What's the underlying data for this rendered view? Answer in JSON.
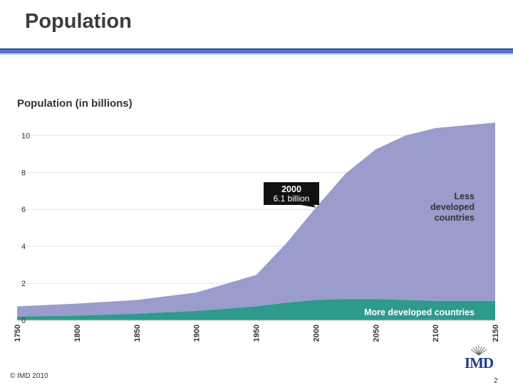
{
  "slide": {
    "title": "Population",
    "footer": "© IMD 2010",
    "page_number": "2",
    "logo_text": "IMD"
  },
  "colors": {
    "less_developed": "#9a9ccc",
    "more_developed": "#2e9a8c",
    "title_rule": "#2f4ea0"
  },
  "chart_data": {
    "type": "area",
    "title": "Population (in billions)",
    "xlabel": "",
    "ylabel": "",
    "ylim": [
      0,
      10.4
    ],
    "xlim": [
      1750,
      2150
    ],
    "yticks": [
      "0",
      "2",
      "4",
      "6",
      "8",
      "10"
    ],
    "xticks": [
      "1750",
      "1800",
      "1850",
      "1900",
      "1950",
      "2000",
      "2050",
      "2100",
      "2150"
    ],
    "grid": true,
    "stacked": true,
    "series": [
      {
        "name": "More developed countries",
        "color": "#2e9a8c",
        "x": [
          1750,
          1800,
          1850,
          1900,
          1950,
          1975,
          2000,
          2025,
          2050,
          2075,
          2100,
          2150
        ],
        "values": [
          0.2,
          0.25,
          0.35,
          0.5,
          0.75,
          0.95,
          1.1,
          1.15,
          1.15,
          1.1,
          1.05,
          1.05
        ]
      },
      {
        "name": "Less developed countries",
        "color": "#9a9ccc",
        "x": [
          1750,
          1800,
          1850,
          1900,
          1950,
          1975,
          2000,
          2025,
          2050,
          2075,
          2100,
          2150
        ],
        "values": [
          0.55,
          0.65,
          0.75,
          1.0,
          1.7,
          3.2,
          5.0,
          6.8,
          8.1,
          8.9,
          9.35,
          9.65
        ]
      }
    ],
    "annotations": [
      {
        "year": "2000",
        "value": "6.1 billion"
      }
    ]
  }
}
